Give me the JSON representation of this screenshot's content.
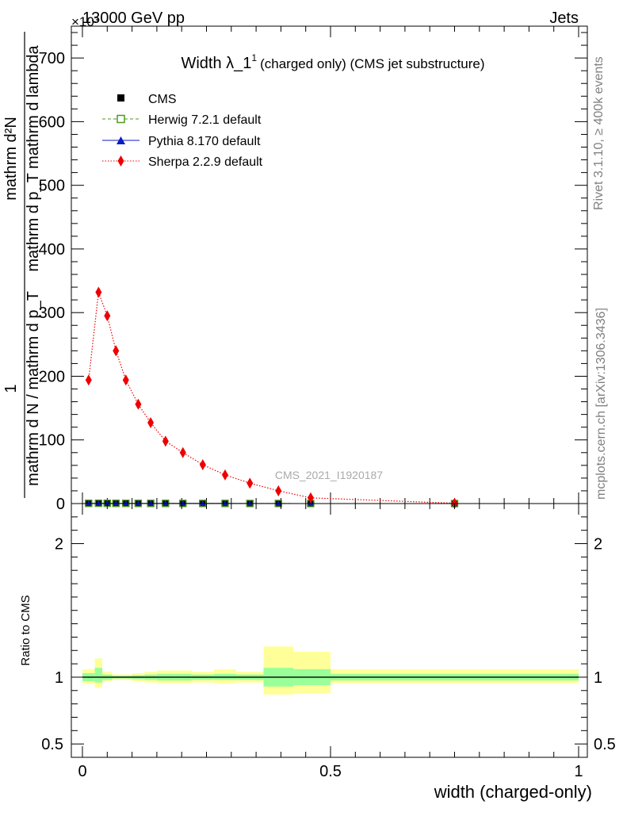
{
  "header": {
    "left": "13000 GeV pp",
    "right": "Jets",
    "exponent": "×10³"
  },
  "side_text": {
    "rivet": "Rivet 3.1.10, ≥ 400k events",
    "mcplots": "mcplots.cern.ch [arXiv:1306.3436]"
  },
  "colors": {
    "cms": "#000000",
    "herwig": "#4d9a1f",
    "pythia": "#0b1bc4",
    "sherpa": "#ee0000",
    "band_inner": "#99ff99",
    "band_outer": "#ffff99"
  },
  "chart_data": [
    {
      "type": "line",
      "title_main": "Width λ_1",
      "title_sup": "1",
      "title_rest": "(charged only) (CMS jet substructure)",
      "watermark": "CMS_2021_I1920187",
      "ylabel_num": "mathrm d²N",
      "ylabel_den": "mathrm d p_T mathrm d lambda",
      "ylabel_frac_top": "1",
      "ylabel_frac_bottom": "mathrm d N / mathrm d p_T",
      "ylim": [
        0,
        750
      ],
      "yticks": [
        0,
        100,
        200,
        300,
        400,
        500,
        600,
        700
      ],
      "legend": [
        "CMS",
        "Herwig 7.2.1 default",
        "Pythia 8.170 default",
        "Sherpa 2.2.9 default"
      ],
      "x": [
        0.0125,
        0.0325,
        0.05,
        0.0675,
        0.0875,
        0.1125,
        0.1375,
        0.1675,
        0.2025,
        0.2425,
        0.2875,
        0.3375,
        0.395,
        0.46,
        0.75
      ],
      "series": [
        {
          "name": "CMS",
          "values": [
            0.4,
            0.5,
            0.5,
            0.4,
            0.4,
            0.3,
            0.3,
            0.3,
            0.2,
            0.2,
            0.2,
            0.1,
            0.1,
            0.05,
            0.01
          ]
        },
        {
          "name": "Herwig 7.2.1 default",
          "values": [
            0.4,
            0.5,
            0.5,
            0.4,
            0.4,
            0.3,
            0.3,
            0.3,
            0.2,
            0.2,
            0.2,
            0.1,
            0.1,
            0.05,
            0.01
          ]
        },
        {
          "name": "Pythia 8.170 default",
          "values": [
            0.4,
            0.5,
            0.5,
            0.4,
            0.4,
            0.3,
            0.3,
            0.3,
            0.2,
            0.2,
            0.2,
            0.1,
            0.1,
            0.05,
            0.01
          ]
        },
        {
          "name": "Sherpa 2.2.9 default",
          "values": [
            194,
            332,
            295,
            240,
            194,
            156,
            127,
            98,
            80,
            61,
            45,
            32,
            20,
            9,
            0.5
          ]
        }
      ]
    },
    {
      "type": "area",
      "ylabel": "Ratio to CMS",
      "xlabel": "width (charged-only)",
      "xlim": [
        0,
        1
      ],
      "ylim": [
        0.4,
        2.3
      ],
      "xticks": [
        {
          "v": 0,
          "label": "0"
        },
        {
          "v": 0.5,
          "label": "0.5"
        },
        {
          "v": 1,
          "label": "1"
        }
      ],
      "yticks": [
        {
          "v": 0.5,
          "label": "0.5"
        },
        {
          "v": 1,
          "label": "1"
        },
        {
          "v": 2,
          "label": "2"
        }
      ],
      "bins": [
        {
          "lo": 0.0,
          "hi": 0.025,
          "inner": [
            0.97,
            1.03
          ],
          "outer": [
            0.95,
            1.06
          ]
        },
        {
          "lo": 0.025,
          "hi": 0.04,
          "inner": [
            0.96,
            1.07
          ],
          "outer": [
            0.92,
            1.14
          ]
        },
        {
          "lo": 0.04,
          "hi": 0.06,
          "inner": [
            0.98,
            1.02
          ],
          "outer": [
            0.97,
            1.04
          ]
        },
        {
          "lo": 0.06,
          "hi": 0.075,
          "inner": [
            0.99,
            1.01
          ],
          "outer": [
            0.98,
            1.02
          ]
        },
        {
          "lo": 0.075,
          "hi": 0.1,
          "inner": [
            0.99,
            1.01
          ],
          "outer": [
            0.98,
            1.02
          ]
        },
        {
          "lo": 0.1,
          "hi": 0.125,
          "inner": [
            0.985,
            1.015
          ],
          "outer": [
            0.97,
            1.03
          ]
        },
        {
          "lo": 0.125,
          "hi": 0.15,
          "inner": [
            0.98,
            1.02
          ],
          "outer": [
            0.96,
            1.04
          ]
        },
        {
          "lo": 0.15,
          "hi": 0.185,
          "inner": [
            0.975,
            1.025
          ],
          "outer": [
            0.955,
            1.05
          ]
        },
        {
          "lo": 0.185,
          "hi": 0.22,
          "inner": [
            0.975,
            1.025
          ],
          "outer": [
            0.955,
            1.05
          ]
        },
        {
          "lo": 0.22,
          "hi": 0.265,
          "inner": [
            0.98,
            1.02
          ],
          "outer": [
            0.96,
            1.04
          ]
        },
        {
          "lo": 0.265,
          "hi": 0.31,
          "inner": [
            0.98,
            1.025
          ],
          "outer": [
            0.955,
            1.06
          ]
        },
        {
          "lo": 0.31,
          "hi": 0.365,
          "inner": [
            0.98,
            1.02
          ],
          "outer": [
            0.96,
            1.04
          ]
        },
        {
          "lo": 0.365,
          "hi": 0.425,
          "inner": [
            0.93,
            1.07
          ],
          "outer": [
            0.87,
            1.23
          ]
        },
        {
          "lo": 0.425,
          "hi": 0.5,
          "inner": [
            0.94,
            1.06
          ],
          "outer": [
            0.88,
            1.19
          ]
        },
        {
          "lo": 0.5,
          "hi": 1.0,
          "inner": [
            0.975,
            1.025
          ],
          "outer": [
            0.955,
            1.06
          ]
        }
      ],
      "series": [
        {
          "name": "CMS",
          "values": [
            1,
            1,
            1,
            1,
            1,
            1,
            1,
            1,
            1,
            1,
            1,
            1,
            1,
            1,
            1
          ]
        }
      ]
    }
  ]
}
